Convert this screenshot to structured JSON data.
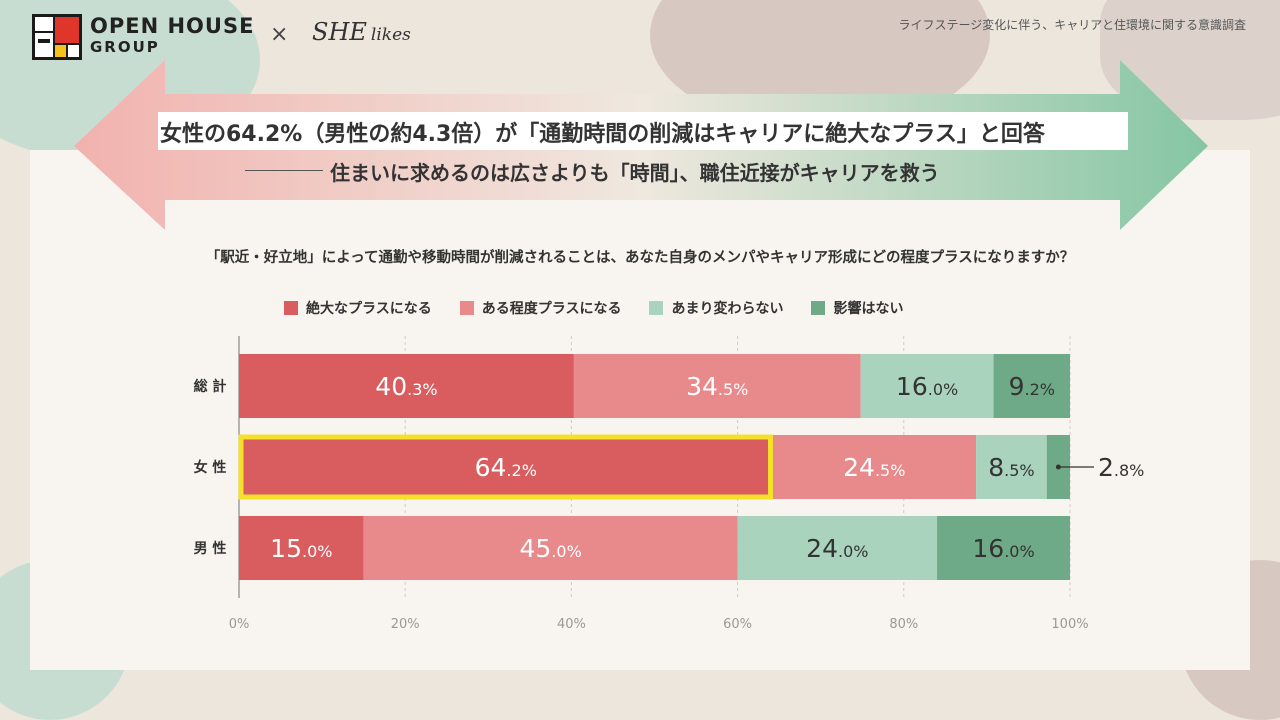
{
  "header": {
    "brand_line1": "OPEN HOUSE",
    "brand_line2": "GROUP",
    "times": "×",
    "partner_main": "SHE",
    "partner_sub": "likes",
    "survey_title": "ライフステージ変化に伴う、キャリアと住環境に関する意識調査"
  },
  "headline": {
    "main": "女性の64.2%（男性の約4.3倍）が「通勤時間の削減はキャリアに絶大なプラス」と回答",
    "sub": "住まいに求めるのは広さよりも「時間」、職住近接がキャリアを救う"
  },
  "colors": {
    "c1": "#d95c5f",
    "c2": "#e8898b",
    "c3": "#a9d3bd",
    "c4": "#6faa88",
    "highlight": "#f5e12b",
    "arrow_left": "#f2b4b0",
    "arrow_right": "#86c7a6"
  },
  "chart_data": {
    "type": "bar",
    "orientation": "horizontal-stacked",
    "title": "「駅近・好立地」によって通勤や移動時間が削減されることは、あなた自身のメンパやキャリア形成にどの程度プラスになりますか？",
    "categories": [
      "総計",
      "女性",
      "男性"
    ],
    "series": [
      {
        "name": "絶大なプラスになる",
        "values": [
          40.3,
          64.2,
          15.0
        ]
      },
      {
        "name": "ある程度プラスになる",
        "values": [
          34.5,
          24.5,
          45.0
        ]
      },
      {
        "name": "あまり変わらない",
        "values": [
          16.0,
          8.5,
          24.0
        ]
      },
      {
        "name": "影響はない",
        "values": [
          9.2,
          2.8,
          16.0
        ]
      }
    ],
    "value_labels": [
      [
        [
          "40",
          ".3%"
        ],
        [
          "34",
          ".5%"
        ],
        [
          "16",
          ".0%"
        ],
        [
          "9",
          ".2%"
        ]
      ],
      [
        [
          "64",
          ".2%"
        ],
        [
          "24",
          ".5%"
        ],
        [
          "8",
          ".5%"
        ],
        [
          "2",
          ".8%"
        ]
      ],
      [
        [
          "15",
          ".0%"
        ],
        [
          "45",
          ".0%"
        ],
        [
          "24",
          ".0%"
        ],
        [
          "16",
          ".0%"
        ]
      ]
    ],
    "xlim": [
      0,
      100
    ],
    "x_ticks": [
      "0%",
      "20%",
      "40%",
      "60%",
      "80%",
      "100%"
    ],
    "highlight": {
      "row": 1,
      "series": 0
    },
    "legend_position": "top"
  }
}
